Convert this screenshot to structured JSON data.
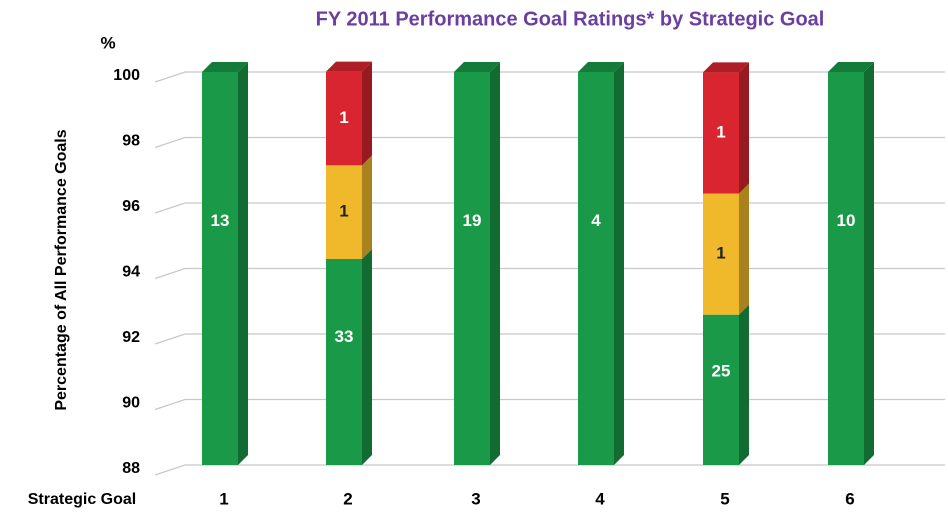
{
  "chart_data": {
    "type": "bar3d_stacked",
    "title": "FY 2011 Performance Goal Ratings* by Strategic Goal",
    "y_unit": "%",
    "y_label": "Percentage of All Performance Goals",
    "x_label": "Strategic Goal",
    "categories": [
      "1",
      "2",
      "3",
      "4",
      "5",
      "6"
    ],
    "series": [
      {
        "color": "#1a9a48",
        "values": [
          100,
          94.29,
          100,
          100,
          92.59,
          100
        ],
        "counts": [
          13,
          33,
          19,
          4,
          25,
          10
        ]
      },
      {
        "color": "#f0b92b",
        "values": [
          null,
          2.86,
          null,
          null,
          3.7,
          null
        ],
        "counts": [
          null,
          1,
          null,
          null,
          1,
          null
        ]
      },
      {
        "color": "#d9252f",
        "values": [
          null,
          2.86,
          null,
          null,
          3.7,
          null
        ],
        "counts": [
          null,
          1,
          null,
          null,
          1,
          null
        ]
      }
    ],
    "ylim": [
      88,
      100
    ],
    "yticks": [
      88,
      90,
      92,
      94,
      96,
      98,
      100
    ],
    "grid": true
  }
}
